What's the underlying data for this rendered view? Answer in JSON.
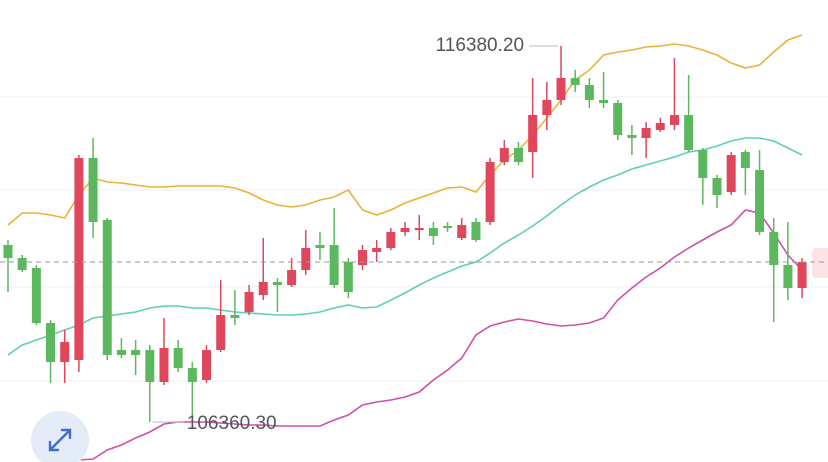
{
  "chart_data": {
    "type": "candlestick",
    "ylim": [
      105294,
      117606
    ],
    "up_color": "#e0475c",
    "down_color": "#5cb85f",
    "high_label": "116380.20",
    "low_label": "106360.30",
    "open": [
      111077,
      110730,
      110464,
      108998,
      107959,
      108012,
      113395,
      111743,
      108278,
      108278,
      108278,
      107426,
      108332,
      107799,
      107479,
      108278,
      109211,
      109291,
      109744,
      110091,
      110011,
      110410,
      111077,
      111077,
      110624,
      110544,
      110890,
      110997,
      111423,
      111476,
      111530,
      111583,
      111263,
      111690,
      111690,
      113289,
      113662,
      113555,
      114541,
      114941,
      115527,
      115341,
      114941,
      114861,
      114008,
      113928,
      114141,
      114275,
      114541,
      113608,
      112862,
      112489,
      113555,
      113075,
      111423,
      110544,
      109931
    ],
    "high": [
      111210,
      110810,
      110544,
      109078,
      108811,
      113475,
      113928,
      111796,
      108598,
      108545,
      108412,
      109131,
      108545,
      107959,
      108412,
      110144,
      109877,
      110011,
      111263,
      110197,
      110730,
      111476,
      111423,
      112063,
      110730,
      111077,
      111210,
      111530,
      111690,
      111876,
      111690,
      111690,
      111796,
      111796,
      113395,
      113875,
      113822,
      115527,
      115421,
      116380.2,
      115741,
      115527,
      115687,
      114941,
      114275,
      114355,
      114461,
      116060,
      115607,
      113662,
      112942,
      113555,
      113608,
      113608,
      111796,
      111690,
      110730
    ],
    "low": [
      109824,
      110357,
      108945,
      107399,
      107399,
      107692,
      111263,
      108012,
      108065,
      107612,
      106360.3,
      107346,
      107692,
      106466,
      107399,
      108225,
      108945,
      109211,
      109611,
      109291,
      109957,
      110277,
      110677,
      109931,
      109664,
      110410,
      110624,
      110943,
      111317,
      111210,
      111077,
      111423,
      111210,
      111157,
      111610,
      113209,
      113209,
      112862,
      114141,
      114808,
      115154,
      114728,
      114728,
      113875,
      113475,
      113395,
      114088,
      114141,
      113555,
      112143,
      112063,
      112409,
      112409,
      111343,
      109025,
      109611,
      109664
    ],
    "close": [
      110730,
      110410,
      108998,
      107959,
      108492,
      113395,
      111690,
      108145,
      108145,
      108145,
      107426,
      108332,
      107799,
      107426,
      108278,
      109211,
      109131,
      109824,
      110091,
      110011,
      110410,
      110997,
      110997,
      110011,
      109824,
      110943,
      110997,
      111423,
      111530,
      111530,
      111317,
      111530,
      111610,
      111210,
      113289,
      113662,
      113289,
      114541,
      114941,
      115527,
      115341,
      114941,
      114861,
      114008,
      113928,
      114195,
      114328,
      114541,
      113608,
      112862,
      112409,
      113475,
      113129,
      111423,
      110544,
      109931,
      110624
    ],
    "bands": {
      "upper": {
        "color": "#e9b23a",
        "values": [
          111610,
          111930,
          111930,
          111876,
          111796,
          112409,
          112862,
          112756,
          112729,
          112676,
          112622,
          112622,
          112649,
          112649,
          112649,
          112649,
          112596,
          112463,
          112276,
          112143,
          112089,
          112143,
          112276,
          112356,
          112542,
          112009,
          111876,
          112009,
          112196,
          112329,
          112463,
          112596,
          112622,
          112489,
          112942,
          113342,
          113608,
          114008,
          114461,
          114941,
          115474,
          115741,
          116140,
          116220,
          116273,
          116353,
          116380,
          116433,
          116380,
          116273,
          116140,
          115927,
          115794,
          115874,
          116220,
          116540,
          116673
        ]
      },
      "middle": {
        "color": "#5fd0b2",
        "values": [
          108145,
          108412,
          108545,
          108678,
          108811,
          108945,
          109131,
          109185,
          109238,
          109291,
          109398,
          109451,
          109451,
          109398,
          109398,
          109344,
          109291,
          109265,
          109238,
          109211,
          109211,
          109238,
          109291,
          109398,
          109478,
          109398,
          109424,
          109611,
          109798,
          110011,
          110197,
          110357,
          110517,
          110624,
          110864,
          111130,
          111343,
          111583,
          111850,
          112143,
          112409,
          112622,
          112809,
          112942,
          113102,
          113209,
          113315,
          113422,
          113555,
          113608,
          113715,
          113848,
          113928,
          113928,
          113848,
          113662,
          113475
        ]
      },
      "lower": {
        "color": "#cf4fa9",
        "values": [
          null,
          null,
          null,
          105294,
          105400,
          105347,
          105374,
          105614,
          105747,
          105933,
          106093,
          106306,
          106360,
          106360,
          106360,
          106333,
          106306,
          106280,
          106280,
          106253,
          106253,
          106253,
          106253,
          106413,
          106546,
          106813,
          106893,
          106946,
          107026,
          107159,
          107479,
          107745,
          108065,
          108678,
          108918,
          109025,
          109105,
          109051,
          108971,
          108918,
          108945,
          108998,
          109131,
          109611,
          109931,
          110224,
          110464,
          110757,
          110997,
          111210,
          111423,
          111610,
          112009,
          111930,
          111397,
          110810,
          110410
        ]
      }
    }
  }
}
